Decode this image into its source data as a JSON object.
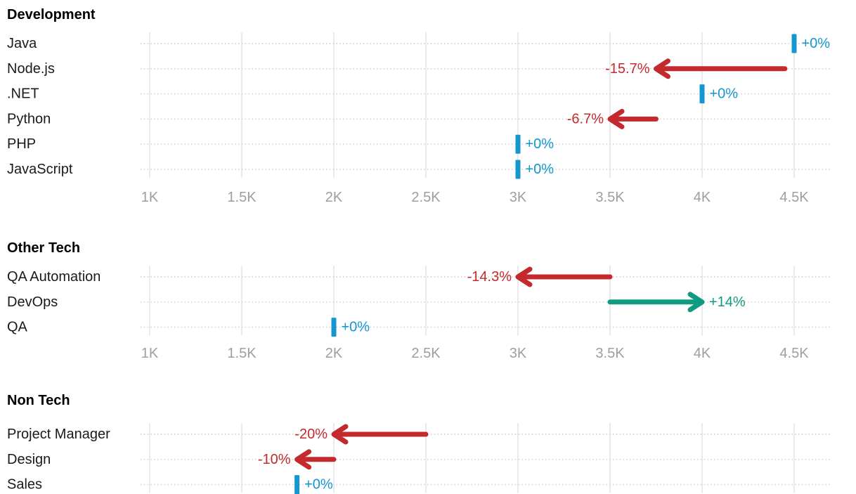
{
  "page": {
    "background": "#ffffff"
  },
  "colors": {
    "no_change": "#1496cf",
    "decrease": "#c4292e",
    "increase": "#0f9b80",
    "grid_line": "#e2e2e2",
    "row_dotted_line": "#cbcbcb",
    "axis_label": "#9e9e9e",
    "row_label": "#1a1a1a",
    "section_header": "#000000"
  },
  "chart_data": [
    {
      "type": "arrow",
      "title": "Development",
      "orientation": "horizontal",
      "xlabel": "",
      "ylabel": "",
      "xlim": [
        1000,
        4700
      ],
      "grid": true,
      "axis": {
        "visible": true,
        "tick_values": [
          1000,
          1500,
          2000,
          2500,
          3000,
          3500,
          4000,
          4500
        ],
        "tick_labels": [
          "1K",
          "1.5K",
          "2K",
          "2.5K",
          "3K",
          "3.5K",
          "4K",
          "4.5K"
        ]
      },
      "rows": [
        {
          "label": "Java",
          "start": 4500,
          "end": 4500,
          "change": "+0%",
          "trend": "flat"
        },
        {
          "label": "Node.js",
          "start": 4450,
          "end": 3750,
          "change": "-15.7%",
          "trend": "down"
        },
        {
          "label": ".NET",
          "start": 4000,
          "end": 4000,
          "change": "+0%",
          "trend": "flat"
        },
        {
          "label": "Python",
          "start": 3750,
          "end": 3500,
          "change": "-6.7%",
          "trend": "down"
        },
        {
          "label": "PHP",
          "start": 3000,
          "end": 3000,
          "change": "+0%",
          "trend": "flat"
        },
        {
          "label": "JavaScript",
          "start": 3000,
          "end": 3000,
          "change": "+0%",
          "trend": "flat"
        }
      ]
    },
    {
      "type": "arrow",
      "title": "Other Tech",
      "orientation": "horizontal",
      "xlabel": "",
      "ylabel": "",
      "xlim": [
        1000,
        4700
      ],
      "grid": true,
      "axis": {
        "visible": true,
        "tick_values": [
          1000,
          1500,
          2000,
          2500,
          3000,
          3500,
          4000,
          4500
        ],
        "tick_labels": [
          "1K",
          "1.5K",
          "2K",
          "2.5K",
          "3K",
          "3.5K",
          "4K",
          "4.5K"
        ]
      },
      "rows": [
        {
          "label": "QA Automation",
          "start": 3500,
          "end": 3000,
          "change": "-14.3%",
          "trend": "down"
        },
        {
          "label": "DevOps",
          "start": 3500,
          "end": 4000,
          "change": "+14%",
          "trend": "up"
        },
        {
          "label": "QA",
          "start": 2000,
          "end": 2000,
          "change": "+0%",
          "trend": "flat"
        }
      ]
    },
    {
      "type": "arrow",
      "title": "Non Tech",
      "orientation": "horizontal",
      "xlabel": "",
      "ylabel": "",
      "xlim": [
        1000,
        4700
      ],
      "grid": true,
      "axis": {
        "visible": false,
        "tick_values": [
          1000,
          1500,
          2000,
          2500,
          3000,
          3500,
          4000,
          4500
        ],
        "tick_labels": []
      },
      "rows": [
        {
          "label": "Project Manager",
          "start": 2500,
          "end": 2000,
          "change": "-20%",
          "trend": "down"
        },
        {
          "label": "Design",
          "start": 2000,
          "end": 1800,
          "change": "-10%",
          "trend": "down"
        },
        {
          "label": "Sales",
          "start": 1800,
          "end": 1800,
          "change": "+0%",
          "trend": "flat"
        }
      ]
    }
  ]
}
